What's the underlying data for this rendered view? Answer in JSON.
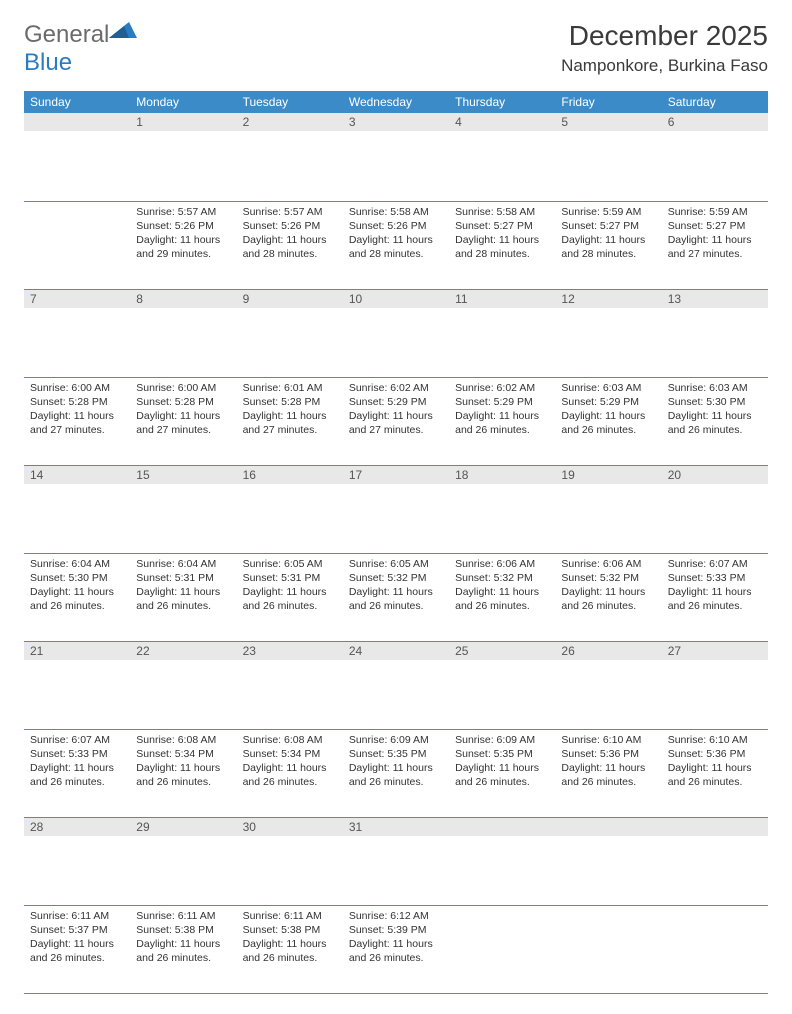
{
  "brand": {
    "part1": "General",
    "part2": "Blue"
  },
  "title": "December 2025",
  "location": "Namponkore, Burkina Faso",
  "colors": {
    "header_bg": "#3b8bc9",
    "header_text": "#ffffff",
    "daynum_bg": "#e8e8e8",
    "row_border": "#4a8fc2",
    "logo_gray": "#6b6b6b",
    "logo_blue": "#2b7bbf"
  },
  "weekdays": [
    "Sunday",
    "Monday",
    "Tuesday",
    "Wednesday",
    "Thursday",
    "Friday",
    "Saturday"
  ],
  "weeks": [
    [
      {
        "n": "",
        "sr": "",
        "ss": "",
        "dl": ""
      },
      {
        "n": "1",
        "sr": "Sunrise: 5:57 AM",
        "ss": "Sunset: 5:26 PM",
        "dl": "Daylight: 11 hours and 29 minutes."
      },
      {
        "n": "2",
        "sr": "Sunrise: 5:57 AM",
        "ss": "Sunset: 5:26 PM",
        "dl": "Daylight: 11 hours and 28 minutes."
      },
      {
        "n": "3",
        "sr": "Sunrise: 5:58 AM",
        "ss": "Sunset: 5:26 PM",
        "dl": "Daylight: 11 hours and 28 minutes."
      },
      {
        "n": "4",
        "sr": "Sunrise: 5:58 AM",
        "ss": "Sunset: 5:27 PM",
        "dl": "Daylight: 11 hours and 28 minutes."
      },
      {
        "n": "5",
        "sr": "Sunrise: 5:59 AM",
        "ss": "Sunset: 5:27 PM",
        "dl": "Daylight: 11 hours and 28 minutes."
      },
      {
        "n": "6",
        "sr": "Sunrise: 5:59 AM",
        "ss": "Sunset: 5:27 PM",
        "dl": "Daylight: 11 hours and 27 minutes."
      }
    ],
    [
      {
        "n": "7",
        "sr": "Sunrise: 6:00 AM",
        "ss": "Sunset: 5:28 PM",
        "dl": "Daylight: 11 hours and 27 minutes."
      },
      {
        "n": "8",
        "sr": "Sunrise: 6:00 AM",
        "ss": "Sunset: 5:28 PM",
        "dl": "Daylight: 11 hours and 27 minutes."
      },
      {
        "n": "9",
        "sr": "Sunrise: 6:01 AM",
        "ss": "Sunset: 5:28 PM",
        "dl": "Daylight: 11 hours and 27 minutes."
      },
      {
        "n": "10",
        "sr": "Sunrise: 6:02 AM",
        "ss": "Sunset: 5:29 PM",
        "dl": "Daylight: 11 hours and 27 minutes."
      },
      {
        "n": "11",
        "sr": "Sunrise: 6:02 AM",
        "ss": "Sunset: 5:29 PM",
        "dl": "Daylight: 11 hours and 26 minutes."
      },
      {
        "n": "12",
        "sr": "Sunrise: 6:03 AM",
        "ss": "Sunset: 5:29 PM",
        "dl": "Daylight: 11 hours and 26 minutes."
      },
      {
        "n": "13",
        "sr": "Sunrise: 6:03 AM",
        "ss": "Sunset: 5:30 PM",
        "dl": "Daylight: 11 hours and 26 minutes."
      }
    ],
    [
      {
        "n": "14",
        "sr": "Sunrise: 6:04 AM",
        "ss": "Sunset: 5:30 PM",
        "dl": "Daylight: 11 hours and 26 minutes."
      },
      {
        "n": "15",
        "sr": "Sunrise: 6:04 AM",
        "ss": "Sunset: 5:31 PM",
        "dl": "Daylight: 11 hours and 26 minutes."
      },
      {
        "n": "16",
        "sr": "Sunrise: 6:05 AM",
        "ss": "Sunset: 5:31 PM",
        "dl": "Daylight: 11 hours and 26 minutes."
      },
      {
        "n": "17",
        "sr": "Sunrise: 6:05 AM",
        "ss": "Sunset: 5:32 PM",
        "dl": "Daylight: 11 hours and 26 minutes."
      },
      {
        "n": "18",
        "sr": "Sunrise: 6:06 AM",
        "ss": "Sunset: 5:32 PM",
        "dl": "Daylight: 11 hours and 26 minutes."
      },
      {
        "n": "19",
        "sr": "Sunrise: 6:06 AM",
        "ss": "Sunset: 5:32 PM",
        "dl": "Daylight: 11 hours and 26 minutes."
      },
      {
        "n": "20",
        "sr": "Sunrise: 6:07 AM",
        "ss": "Sunset: 5:33 PM",
        "dl": "Daylight: 11 hours and 26 minutes."
      }
    ],
    [
      {
        "n": "21",
        "sr": "Sunrise: 6:07 AM",
        "ss": "Sunset: 5:33 PM",
        "dl": "Daylight: 11 hours and 26 minutes."
      },
      {
        "n": "22",
        "sr": "Sunrise: 6:08 AM",
        "ss": "Sunset: 5:34 PM",
        "dl": "Daylight: 11 hours and 26 minutes."
      },
      {
        "n": "23",
        "sr": "Sunrise: 6:08 AM",
        "ss": "Sunset: 5:34 PM",
        "dl": "Daylight: 11 hours and 26 minutes."
      },
      {
        "n": "24",
        "sr": "Sunrise: 6:09 AM",
        "ss": "Sunset: 5:35 PM",
        "dl": "Daylight: 11 hours and 26 minutes."
      },
      {
        "n": "25",
        "sr": "Sunrise: 6:09 AM",
        "ss": "Sunset: 5:35 PM",
        "dl": "Daylight: 11 hours and 26 minutes."
      },
      {
        "n": "26",
        "sr": "Sunrise: 6:10 AM",
        "ss": "Sunset: 5:36 PM",
        "dl": "Daylight: 11 hours and 26 minutes."
      },
      {
        "n": "27",
        "sr": "Sunrise: 6:10 AM",
        "ss": "Sunset: 5:36 PM",
        "dl": "Daylight: 11 hours and 26 minutes."
      }
    ],
    [
      {
        "n": "28",
        "sr": "Sunrise: 6:11 AM",
        "ss": "Sunset: 5:37 PM",
        "dl": "Daylight: 11 hours and 26 minutes."
      },
      {
        "n": "29",
        "sr": "Sunrise: 6:11 AM",
        "ss": "Sunset: 5:38 PM",
        "dl": "Daylight: 11 hours and 26 minutes."
      },
      {
        "n": "30",
        "sr": "Sunrise: 6:11 AM",
        "ss": "Sunset: 5:38 PM",
        "dl": "Daylight: 11 hours and 26 minutes."
      },
      {
        "n": "31",
        "sr": "Sunrise: 6:12 AM",
        "ss": "Sunset: 5:39 PM",
        "dl": "Daylight: 11 hours and 26 minutes."
      },
      {
        "n": "",
        "sr": "",
        "ss": "",
        "dl": ""
      },
      {
        "n": "",
        "sr": "",
        "ss": "",
        "dl": ""
      },
      {
        "n": "",
        "sr": "",
        "ss": "",
        "dl": ""
      }
    ]
  ]
}
